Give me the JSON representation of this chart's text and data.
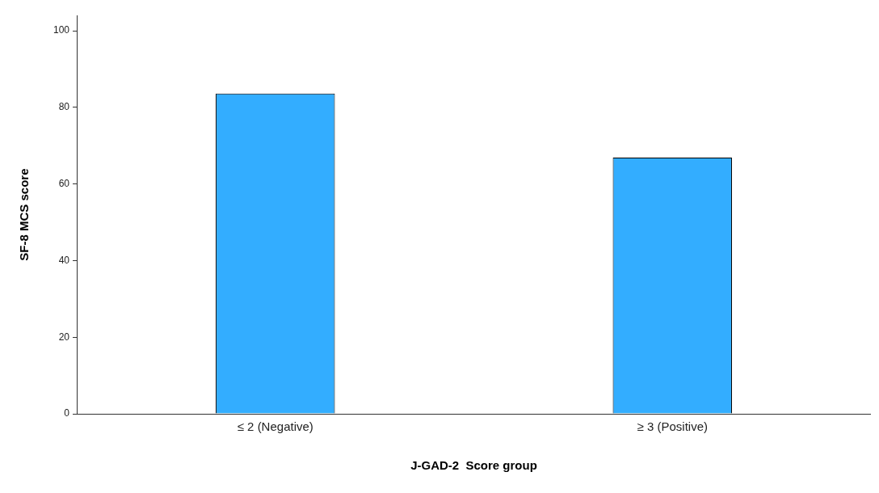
{
  "chart_data": {
    "type": "bar",
    "xlabel": "J-GAD-2  Score group",
    "ylabel": "SF-8 MCS score",
    "categories": [
      "≤ 2 (Negative)",
      "≥ 3 (Positive)"
    ],
    "values": [
      83.6,
      66.9
    ],
    "color": "#33adff",
    "ylim": [
      0,
      104
    ],
    "yticks": [
      0,
      20,
      40,
      60,
      80,
      100
    ],
    "grid": false,
    "legend": false
  }
}
